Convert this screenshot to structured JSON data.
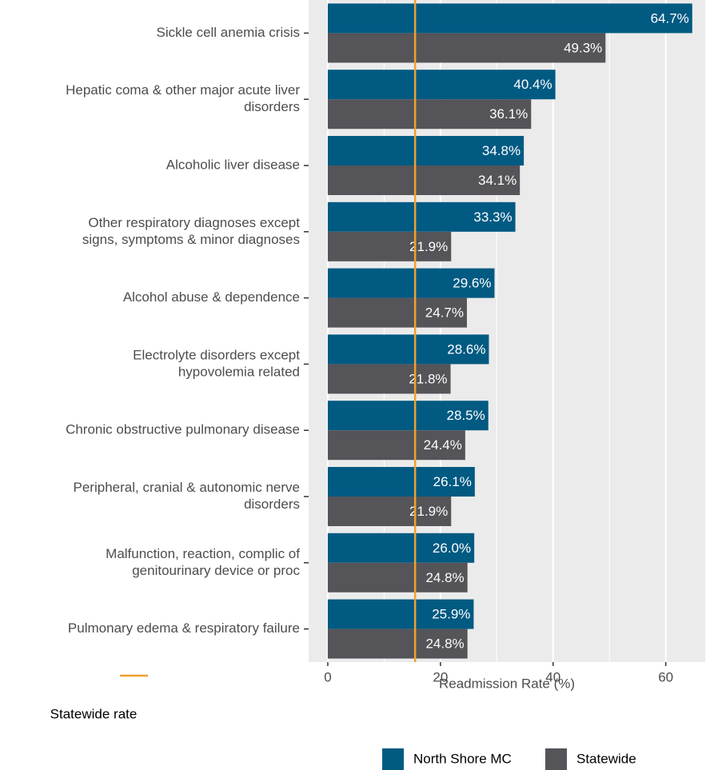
{
  "chart_data": {
    "type": "bar",
    "orientation": "horizontal",
    "categories": [
      [
        "Sickle cell anemia crisis"
      ],
      [
        "Hepatic coma & other major acute liver",
        "disorders"
      ],
      [
        "Alcoholic liver disease"
      ],
      [
        "Other respiratory diagnoses except",
        "signs, symptoms & minor diagnoses"
      ],
      [
        "Alcohol abuse & dependence"
      ],
      [
        "Electrolyte disorders except",
        "hypovolemia related"
      ],
      [
        "Chronic obstructive pulmonary disease"
      ],
      [
        "Peripheral, cranial & autonomic nerve",
        "disorders"
      ],
      [
        "Malfunction, reaction, complic of",
        "genitourinary device or proc"
      ],
      [
        "Pulmonary edema & respiratory failure"
      ]
    ],
    "series": [
      {
        "name": "North Shore MC",
        "color": "#005a82",
        "values": [
          64.7,
          40.4,
          34.8,
          33.3,
          29.6,
          28.6,
          28.5,
          26.1,
          26.0,
          25.9
        ],
        "value_labels": [
          "64.7%",
          "40.4%",
          "34.8%",
          "33.3%",
          "29.6%",
          "28.6%",
          "28.5%",
          "26.1%",
          "26.0%",
          "25.9%"
        ]
      },
      {
        "name": "Statewide",
        "color": "#545459",
        "values": [
          49.3,
          36.1,
          34.1,
          21.9,
          24.7,
          21.8,
          24.4,
          21.9,
          24.8,
          24.8
        ],
        "value_labels": [
          "49.3%",
          "36.1%",
          "34.1%",
          "21.9%",
          "24.7%",
          "21.8%",
          "24.4%",
          "21.9%",
          "24.8%",
          "24.8%"
        ]
      }
    ],
    "xlabel": "Readmission Rate (%)",
    "xlim": [
      -3.4,
      67
    ],
    "xticks": [
      0,
      20,
      40,
      60
    ],
    "minor_grid": [
      10,
      30,
      50
    ],
    "reference_line": {
      "name": "Statewide rate",
      "value": 15.5,
      "color": "#f0a030"
    },
    "grid": true,
    "legend": "bottom"
  }
}
